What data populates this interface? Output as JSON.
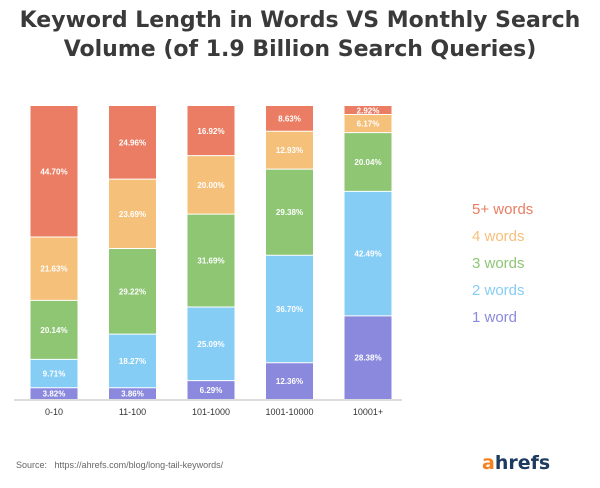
{
  "chart_data": {
    "type": "bar",
    "stacked": true,
    "normalized_percent": true,
    "title_line1": "Keyword Length in Words VS Monthly Search",
    "title_line2": "Volume (of 1.9 Billion Search Queries)",
    "categories": [
      "0-10",
      "11-100",
      "101-1000",
      "1001-10000",
      "10001+"
    ],
    "series": [
      {
        "name": "1 word",
        "color": "#8b89dd",
        "values": [
          3.82,
          3.86,
          6.29,
          12.36,
          28.38
        ]
      },
      {
        "name": "2 words",
        "color": "#86cdf5",
        "values": [
          9.71,
          18.27,
          25.09,
          36.7,
          42.49
        ]
      },
      {
        "name": "3 words",
        "color": "#8ec674",
        "values": [
          20.14,
          29.22,
          31.69,
          29.38,
          20.04
        ]
      },
      {
        "name": "4 words",
        "color": "#f5c07a",
        "values": [
          21.63,
          23.69,
          20.0,
          12.93,
          6.17
        ]
      },
      {
        "name": "5+ words",
        "color": "#ea7d63",
        "values": [
          44.7,
          24.96,
          16.92,
          8.63,
          2.92
        ]
      }
    ],
    "legend_position": "right",
    "ylim": [
      0,
      100
    ],
    "grid": false
  },
  "source": {
    "label": "Source:",
    "url": "https://ahrefs.com/blog/long-tail-keywords/"
  },
  "logo": {
    "first": "a",
    "rest": "hrefs",
    "color_a": "#f58220",
    "color_rest": "#1d3a5f"
  }
}
